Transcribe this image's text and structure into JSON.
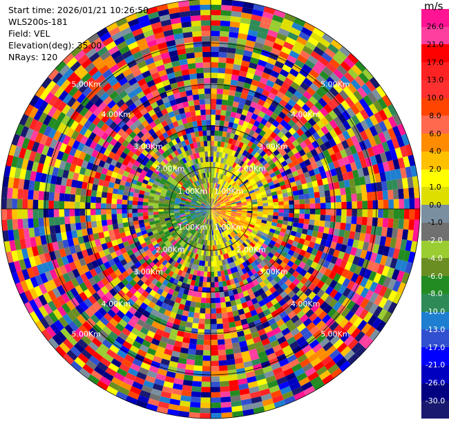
{
  "info": {
    "start_time": "Start time: 2026/01/21 10:26:50",
    "station": "WLS200s-181",
    "field": "Field: VEL",
    "elevation": "Elevation(deg): 35.00",
    "nrays": "NRays: 120"
  },
  "chart_data": {
    "type": "heatmap",
    "projection": "polar-ppi",
    "nrays": 120,
    "ring_labels": [
      "1.00Km",
      "2.00Km",
      "3.00Km",
      "4.00Km",
      "5.00Km"
    ],
    "colorbar": {
      "unit": "m/s",
      "colors": [
        "#FF1493",
        "#FF3FA0",
        "#FF0000",
        "#FF2222",
        "#FF3030",
        "#FF4500",
        "#FF6A4F",
        "#FF8C00",
        "#FFC000",
        "#FFFF00",
        "#DEDE00",
        "#7A8FA0",
        "#707070",
        "#9ACD32",
        "#6B8E23",
        "#228B22",
        "#2E8B57",
        "#1E7FD0",
        "#3050D0",
        "#0000FF",
        "#0000C0",
        "#000080",
        "#191970"
      ],
      "labels": [
        "26.0",
        "21.0",
        "17.0",
        "13.0",
        "10.0",
        "8.0",
        "6.0",
        "4.0",
        "2.0",
        "1.0",
        "0.0",
        "-1.0",
        "-2.0",
        "-4.0",
        "-6.0",
        "-8.0",
        "-10.0",
        "-13.0",
        "-17.0",
        "-21.0",
        "-26.0",
        "-30.0"
      ]
    }
  }
}
